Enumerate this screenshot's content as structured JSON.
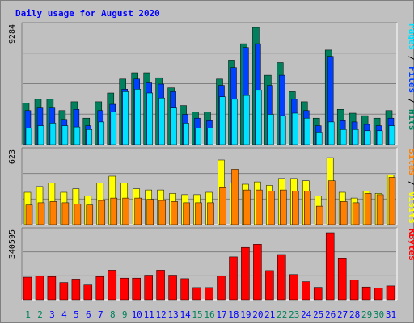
{
  "title": "Daily usage for August 2020",
  "colors": {
    "hits": "#00805c",
    "files": "#0040ff",
    "pages": "#00e0ff",
    "visits": "#ffff00",
    "sites": "#ff8000",
    "kbytes": "#ff0000",
    "weekend_label": "#00805c",
    "weekday_label": "#0000ff",
    "panel": "#c0c0c0"
  },
  "chart_data": [
    {
      "type": "bar",
      "panel": "hits-files-pages",
      "ymax_label": "9284",
      "ylim": [
        0,
        9284
      ],
      "right_labels": [
        {
          "text": "Pages",
          "color": "#00e0ff"
        },
        {
          "text": " / ",
          "color": "#000000"
        },
        {
          "text": "Files",
          "color": "#0040ff"
        },
        {
          "text": " / ",
          "color": "#000000"
        },
        {
          "text": "Hits",
          "color": "#00805c"
        }
      ],
      "categories": [
        "1",
        "2",
        "3",
        "4",
        "5",
        "6",
        "7",
        "8",
        "9",
        "10",
        "11",
        "12",
        "13",
        "14",
        "15",
        "16",
        "17",
        "18",
        "19",
        "20",
        "21",
        "22",
        "23",
        "24",
        "25",
        "26",
        "27",
        "28",
        "29",
        "30",
        "31"
      ],
      "series": [
        {
          "name": "Hits",
          "values": [
            3300,
            3600,
            3600,
            2700,
            3400,
            2100,
            3400,
            4100,
            5200,
            5700,
            5700,
            5300,
            4500,
            3100,
            2600,
            2600,
            5200,
            6700,
            8000,
            9284,
            5500,
            6500,
            4200,
            3400,
            2100,
            7500,
            2800,
            2500,
            2300,
            2100,
            2700
          ]
        },
        {
          "name": "Files",
          "values": [
            2700,
            2900,
            2900,
            2000,
            2800,
            1500,
            2700,
            3200,
            4400,
            5200,
            4900,
            4800,
            4200,
            2400,
            2100,
            1900,
            4700,
            6100,
            7700,
            8000,
            4700,
            5500,
            3600,
            2700,
            1500,
            7000,
            1900,
            1800,
            1600,
            1500,
            2100
          ]
        },
        {
          "name": "Pages",
          "values": [
            1300,
            1500,
            1700,
            1500,
            1400,
            1200,
            1800,
            2600,
            4200,
            4400,
            4100,
            3700,
            2900,
            1700,
            1300,
            1300,
            3800,
            3600,
            3900,
            4300,
            2400,
            2300,
            2500,
            2100,
            1000,
            1800,
            1200,
            1200,
            1100,
            1100,
            1500
          ]
        }
      ]
    },
    {
      "type": "bar",
      "panel": "visits-sites",
      "ymax_label": "623",
      "ylim": [
        0,
        623
      ],
      "right_labels": [
        {
          "text": "Sites",
          "color": "#ff8000"
        },
        {
          "text": " / ",
          "color": "#000000"
        },
        {
          "text": "Visits",
          "color": "#ffff00"
        }
      ],
      "categories": [
        "1",
        "2",
        "3",
        "4",
        "5",
        "6",
        "7",
        "8",
        "9",
        "10",
        "11",
        "12",
        "13",
        "14",
        "15",
        "16",
        "17",
        "18",
        "19",
        "20",
        "21",
        "22",
        "23",
        "24",
        "25",
        "26",
        "27",
        "28",
        "29",
        "30",
        "31"
      ],
      "series": [
        {
          "name": "Visits",
          "values": [
            280,
            330,
            360,
            280,
            310,
            250,
            360,
            420,
            360,
            310,
            300,
            300,
            270,
            260,
            260,
            280,
            560,
            360,
            350,
            370,
            340,
            400,
            400,
            380,
            250,
            580,
            280,
            230,
            290,
            270,
            430
          ]
        },
        {
          "name": "Sites",
          "values": [
            170,
            190,
            200,
            190,
            180,
            170,
            210,
            230,
            230,
            230,
            220,
            210,
            200,
            190,
            190,
            190,
            320,
            480,
            300,
            300,
            290,
            300,
            290,
            290,
            160,
            380,
            200,
            190,
            270,
            260,
            410
          ]
        }
      ]
    },
    {
      "type": "bar",
      "panel": "kbytes",
      "ymax_label": "340595",
      "ylim": [
        0,
        340595
      ],
      "right_labels": [
        {
          "text": "KBytes",
          "color": "#ff0000"
        }
      ],
      "categories": [
        "1",
        "2",
        "3",
        "4",
        "5",
        "6",
        "7",
        "8",
        "9",
        "10",
        "11",
        "12",
        "13",
        "14",
        "15",
        "16",
        "17",
        "18",
        "19",
        "20",
        "21",
        "22",
        "23",
        "24",
        "25",
        "26",
        "27",
        "28",
        "29",
        "30",
        "31"
      ],
      "series": [
        {
          "name": "KBytes",
          "values": [
            115000,
            120000,
            118000,
            88000,
            105000,
            75000,
            118000,
            150000,
            110000,
            110000,
            125000,
            150000,
            125000,
            107000,
            62000,
            62000,
            120000,
            218000,
            266000,
            282000,
            148000,
            230000,
            128000,
            92000,
            63000,
            340595,
            212000,
            100000,
            65000,
            60000,
            70000
          ]
        }
      ]
    }
  ]
}
